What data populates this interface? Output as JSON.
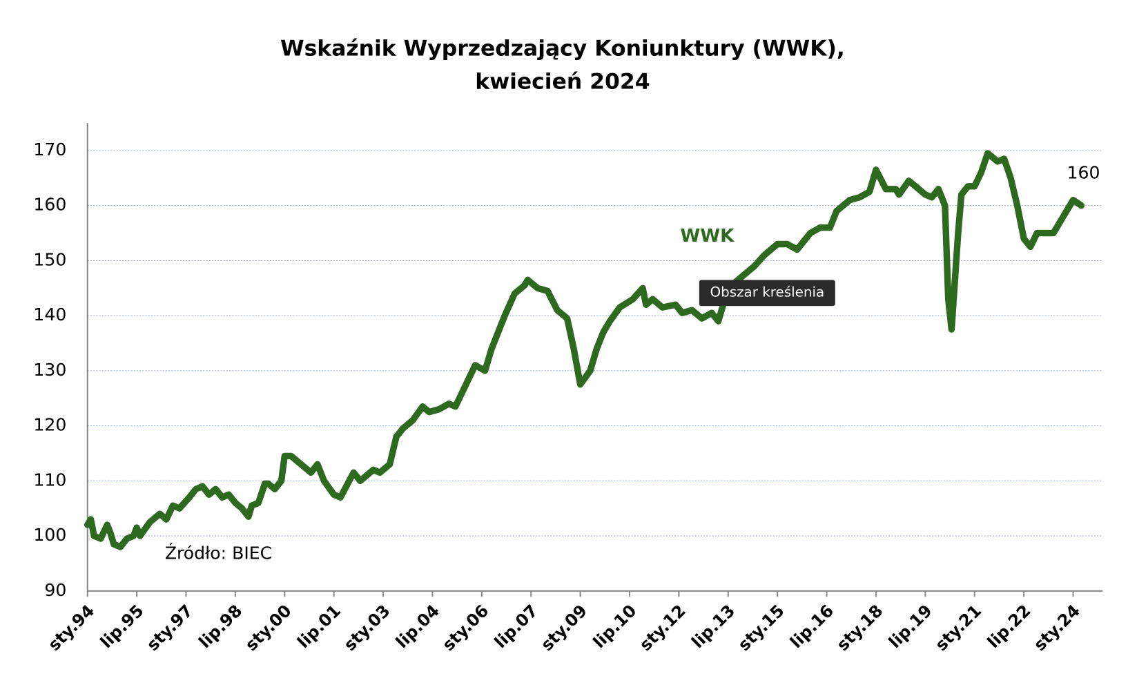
{
  "chart_data": {
    "type": "line",
    "title": "Wskaźnik Wyprzedzający Koniunktury (WWK),",
    "subtitle": "kwiecień 2024",
    "source": "Źródło: BIEC",
    "tooltip": "Obszar kreślenia",
    "x": [
      1994.0,
      1994.1,
      1994.2,
      1994.4,
      1994.6,
      1994.7,
      1994.8,
      1995.0,
      1995.2,
      1995.4,
      1995.5,
      1995.6,
      1995.9,
      1996.2,
      1996.4,
      1996.6,
      1996.8,
      1997.1,
      1997.3,
      1997.5,
      1997.7,
      1997.9,
      1998.1,
      1998.3,
      1998.5,
      1998.7,
      1998.9,
      1999.0,
      1999.2,
      1999.4,
      1999.5,
      1999.7,
      1999.9,
      2000.0,
      2000.2,
      2000.5,
      2000.7,
      2000.8,
      2001.0,
      2001.2,
      2001.5,
      2001.7,
      2002.1,
      2002.3,
      2002.7,
      2002.9,
      2003.2,
      2003.4,
      2003.6,
      2003.9,
      2004.2,
      2004.4,
      2004.7,
      2005.0,
      2005.2,
      2005.4,
      2005.6,
      2005.8,
      2006.1,
      2006.3,
      2006.5,
      2006.7,
      2007.0,
      2007.3,
      2007.4,
      2007.7,
      2008.0,
      2008.3,
      2008.6,
      2008.8,
      2009.0,
      2009.3,
      2009.5,
      2009.7,
      2009.9,
      2010.2,
      2010.6,
      2010.9,
      2011.0,
      2011.2,
      2011.5,
      2011.9,
      2012.1,
      2012.4,
      2012.7,
      2013.0,
      2013.2,
      2013.4,
      2013.7,
      2014.0,
      2014.3,
      2014.6,
      2015.0,
      2015.3,
      2015.6,
      2016.0,
      2016.3,
      2016.6,
      2016.8,
      2017.2,
      2017.5,
      2017.8,
      2018.0,
      2018.3,
      2018.6,
      2018.7,
      2019.0,
      2019.2,
      2019.5,
      2019.7,
      2019.9,
      2020.1,
      2020.2,
      2020.3,
      2020.5,
      2020.6,
      2020.8,
      2021.0,
      2021.2,
      2021.4,
      2021.7,
      2021.9,
      2022.1,
      2022.3,
      2022.5,
      2022.7,
      2022.9,
      2023.1,
      2023.4,
      2023.7,
      2024.0,
      2024.25
    ],
    "series": [
      {
        "name": "WWK",
        "color": "#2d6a1f",
        "values": [
          102,
          103,
          100,
          99.5,
          102,
          100.5,
          98.5,
          98,
          99.5,
          100,
          101.5,
          100,
          102.5,
          104,
          103,
          105.5,
          105,
          107,
          108.5,
          109,
          107.5,
          108.5,
          107,
          107.5,
          106,
          105,
          103.5,
          105.5,
          106,
          109.5,
          109.5,
          108.5,
          110,
          114.5,
          114.5,
          113,
          112,
          111.5,
          113,
          110,
          107.5,
          107,
          111.5,
          110,
          112,
          111.5,
          113,
          118,
          119.5,
          121,
          123.5,
          122.5,
          123,
          124,
          123.5,
          126,
          128.5,
          131,
          130,
          134,
          137,
          140,
          144,
          145.5,
          146.5,
          145,
          144.5,
          141,
          139.5,
          134,
          127.5,
          130,
          134,
          137,
          139,
          141.5,
          143,
          145,
          142,
          143,
          141.5,
          142,
          140.5,
          141,
          139.5,
          140.5,
          139,
          143,
          146,
          147.5,
          149,
          151,
          153,
          153,
          152,
          155,
          156,
          156,
          159,
          161,
          161.5,
          162.5,
          166.5,
          163,
          163,
          162,
          164.5,
          163.5,
          162,
          161.5,
          163,
          160,
          143,
          137.5,
          155,
          162,
          163.5,
          163.5,
          166,
          169.5,
          168,
          168.5,
          165,
          160,
          154,
          152.5,
          155,
          155,
          155,
          158,
          161,
          160
        ]
      }
    ],
    "xlim": [
      1994.0,
      2024.9
    ],
    "xticks": [
      {
        "value": 1994.0,
        "label": "sty.94"
      },
      {
        "value": 1995.5,
        "label": "lip.95"
      },
      {
        "value": 1997.0,
        "label": "sty.97"
      },
      {
        "value": 1998.5,
        "label": "lip.98"
      },
      {
        "value": 2000.0,
        "label": "sty.00"
      },
      {
        "value": 2001.5,
        "label": "lip.01"
      },
      {
        "value": 2003.0,
        "label": "sty.03"
      },
      {
        "value": 2004.5,
        "label": "lip.04"
      },
      {
        "value": 2006.0,
        "label": "sty.06"
      },
      {
        "value": 2007.5,
        "label": "lip.07"
      },
      {
        "value": 2009.0,
        "label": "sty.09"
      },
      {
        "value": 2010.5,
        "label": "lip.10"
      },
      {
        "value": 2012.0,
        "label": "sty.12"
      },
      {
        "value": 2013.5,
        "label": "lip.13"
      },
      {
        "value": 2015.0,
        "label": "sty.15"
      },
      {
        "value": 2016.5,
        "label": "lip.16"
      },
      {
        "value": 2018.0,
        "label": "sty.18"
      },
      {
        "value": 2019.5,
        "label": "lip.19"
      },
      {
        "value": 2021.0,
        "label": "sty.21"
      },
      {
        "value": 2022.5,
        "label": "lip.22"
      },
      {
        "value": 2024.0,
        "label": "sty.24"
      }
    ],
    "ylim": [
      90,
      175
    ],
    "yticks": [
      90,
      100,
      110,
      120,
      130,
      140,
      150,
      160,
      170
    ],
    "grid": true
  }
}
